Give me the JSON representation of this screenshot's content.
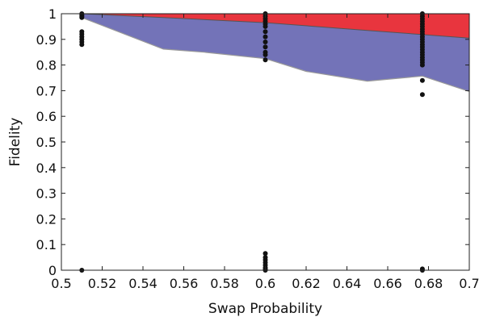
{
  "chart_data": {
    "type": "area",
    "title": "",
    "xlabel": "Swap Probability",
    "ylabel": "Fidelity",
    "xlim": [
      0.5,
      0.7
    ],
    "ylim": [
      0,
      1
    ],
    "grid": false,
    "x_ticks": [
      "0.5",
      "0.52",
      "0.54",
      "0.56",
      "0.58",
      "0.6",
      "0.62",
      "0.64",
      "0.66",
      "0.68",
      "0.7"
    ],
    "y_ticks": [
      "0",
      "0.1",
      "0.2",
      "0.3",
      "0.4",
      "0.5",
      "0.6",
      "0.7",
      "0.8",
      "0.9",
      "1"
    ],
    "upper_boundary": {
      "x": [
        0.51,
        0.55,
        0.6,
        0.65,
        0.7
      ],
      "y": [
        1.0,
        0.985,
        0.965,
        0.935,
        0.905
      ]
    },
    "lower_boundary": {
      "x": [
        0.51,
        0.55,
        0.57,
        0.6,
        0.62,
        0.65,
        0.677,
        0.7
      ],
      "y": [
        0.985,
        0.862,
        0.85,
        0.825,
        0.775,
        0.737,
        0.757,
        0.697
      ]
    },
    "colors": {
      "top_region": "#e8353e",
      "middle_region": "#7373b8",
      "points": "#111111"
    },
    "points": {
      "x": [
        0.51,
        0.51,
        0.51,
        0.51,
        0.51,
        0.51,
        0.51,
        0.51,
        0.51,
        0.51,
        0.51,
        0.6,
        0.6,
        0.6,
        0.6,
        0.6,
        0.6,
        0.6,
        0.6,
        0.6,
        0.6,
        0.6,
        0.6,
        0.6,
        0.6,
        0.6,
        0.6,
        0.6,
        0.6,
        0.6,
        0.6,
        0.6,
        0.677,
        0.677,
        0.677,
        0.677,
        0.677,
        0.677,
        0.677,
        0.677,
        0.677,
        0.677,
        0.677,
        0.677,
        0.677,
        0.677,
        0.677,
        0.677,
        0.677,
        0.677,
        0.677,
        0.677,
        0.677,
        0.677,
        0.677,
        0.677,
        0.677
      ],
      "y": [
        1.0,
        0.995,
        0.99,
        0.985,
        0.93,
        0.92,
        0.91,
        0.9,
        0.89,
        0.88,
        0.0,
        1.0,
        0.99,
        0.98,
        0.97,
        0.96,
        0.95,
        0.93,
        0.91,
        0.89,
        0.87,
        0.85,
        0.84,
        0.82,
        0.065,
        0.05,
        0.04,
        0.03,
        0.02,
        0.01,
        0.005,
        0.0,
        1.0,
        0.99,
        0.98,
        0.97,
        0.96,
        0.95,
        0.94,
        0.93,
        0.92,
        0.91,
        0.9,
        0.89,
        0.88,
        0.87,
        0.86,
        0.85,
        0.84,
        0.83,
        0.82,
        0.81,
        0.8,
        0.74,
        0.685,
        0.005,
        0.0
      ]
    }
  }
}
